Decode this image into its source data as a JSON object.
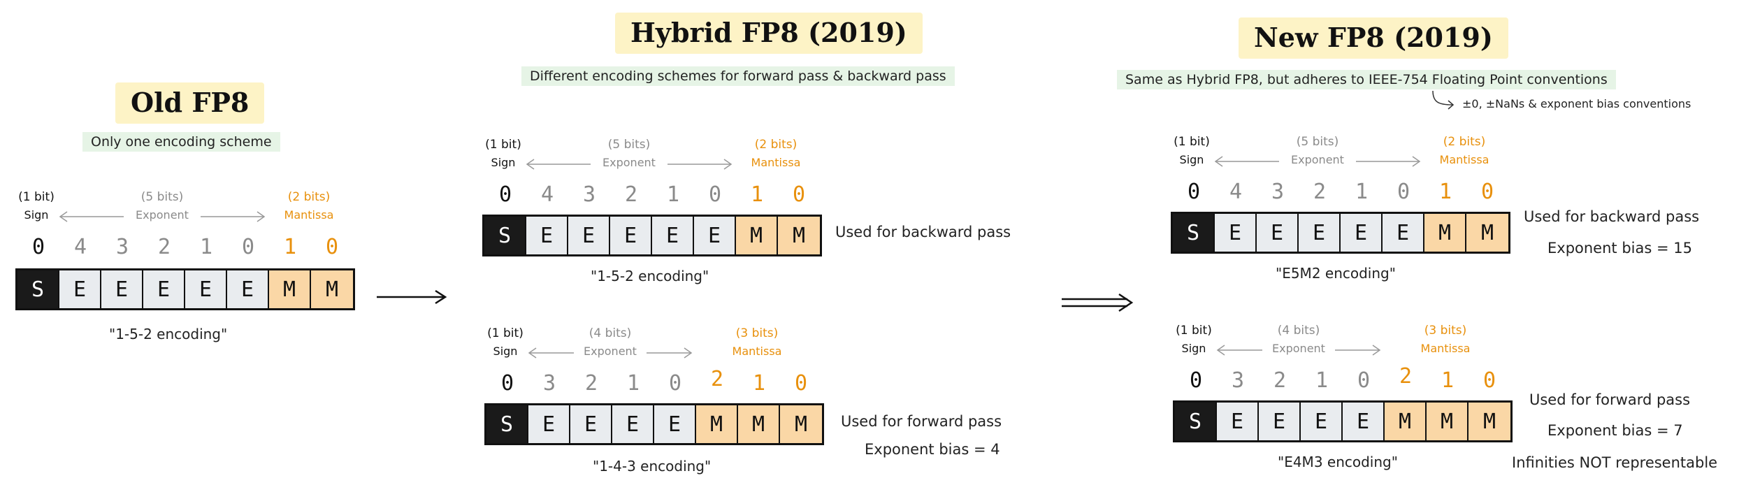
{
  "sections": {
    "old": {
      "title": "Old FP8",
      "subtitle": "Only one encoding scheme",
      "formats": [
        {
          "sign_bits": "(1 bit)",
          "sign_label": "Sign",
          "exp_bits": "(5 bits)",
          "exp_label": "Exponent",
          "man_bits": "(2 bits)",
          "man_label": "Mantissa",
          "indices": [
            "0",
            "4",
            "3",
            "2",
            "1",
            "0",
            "1",
            "0"
          ],
          "cells": [
            "S",
            "E",
            "E",
            "E",
            "E",
            "E",
            "M",
            "M"
          ],
          "encoding": "\"1-5-2 encoding\""
        }
      ]
    },
    "hybrid": {
      "title": "Hybrid FP8 (2019)",
      "subtitle": "Different encoding schemes for forward pass & backward pass",
      "formats": [
        {
          "sign_bits": "(1 bit)",
          "sign_label": "Sign",
          "exp_bits": "(5 bits)",
          "exp_label": "Exponent",
          "man_bits": "(2 bits)",
          "man_label": "Mantissa",
          "indices": [
            "0",
            "4",
            "3",
            "2",
            "1",
            "0",
            "1",
            "0"
          ],
          "cells": [
            "S",
            "E",
            "E",
            "E",
            "E",
            "E",
            "M",
            "M"
          ],
          "encoding": "\"1-5-2 encoding\"",
          "notes": [
            "Used for backward pass"
          ]
        },
        {
          "sign_bits": "(1 bit)",
          "sign_label": "Sign",
          "exp_bits": "(4 bits)",
          "exp_label": "Exponent",
          "man_bits": "(3 bits)",
          "man_label": "Mantissa",
          "indices": [
            "0",
            "3",
            "2",
            "1",
            "0",
            "2",
            "1",
            "0"
          ],
          "cells": [
            "S",
            "E",
            "E",
            "E",
            "E",
            "M",
            "M",
            "M"
          ],
          "encoding": "\"1-4-3 encoding\"",
          "notes": [
            "Used for forward pass",
            "Exponent bias = 4"
          ]
        }
      ]
    },
    "newfp8": {
      "title": "New FP8 (2019)",
      "subtitle": "Same as Hybrid FP8, but adheres to IEEE-754 Floating Point conventions",
      "annotation": "±0, ±NaNs & exponent bias conventions",
      "formats": [
        {
          "sign_bits": "(1 bit)",
          "sign_label": "Sign",
          "exp_bits": "(5 bits)",
          "exp_label": "Exponent",
          "man_bits": "(2 bits)",
          "man_label": "Mantissa",
          "indices": [
            "0",
            "4",
            "3",
            "2",
            "1",
            "0",
            "1",
            "0"
          ],
          "cells": [
            "S",
            "E",
            "E",
            "E",
            "E",
            "E",
            "M",
            "M"
          ],
          "encoding": "\"E5M2 encoding\"",
          "notes": [
            "Used for backward pass",
            "Exponent bias = 15"
          ]
        },
        {
          "sign_bits": "(1 bit)",
          "sign_label": "Sign",
          "exp_bits": "(4 bits)",
          "exp_label": "Exponent",
          "man_bits": "(3 bits)",
          "man_label": "Mantissa",
          "indices": [
            "0",
            "3",
            "2",
            "1",
            "0",
            "2",
            "1",
            "0"
          ],
          "cells": [
            "S",
            "E",
            "E",
            "E",
            "E",
            "M",
            "M",
            "M"
          ],
          "encoding": "\"E4M3 encoding\"",
          "notes": [
            "Used for forward pass",
            "Exponent bias = 7",
            "Infinities NOT representable"
          ]
        }
      ]
    }
  },
  "colors": {
    "sign": "#1a1a1a",
    "exponent": "#e9ecef",
    "mantissa": "#fad7a6",
    "mantissa_text": "#e8900c",
    "title_highlight": "#fdf3c6",
    "subtitle_highlight": "#e6f4e6"
  }
}
